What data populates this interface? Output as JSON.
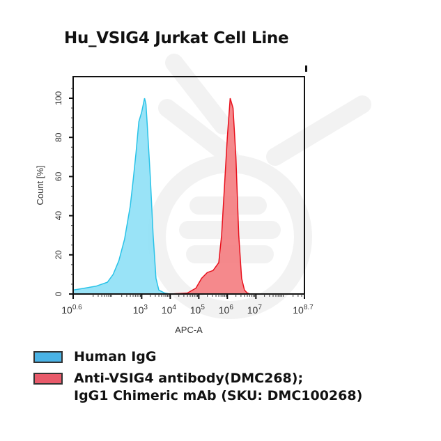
{
  "chart_data": {
    "type": "area",
    "title": "Hu_VSIG4 Jurkat Cell Line",
    "xlabel": "APC-A",
    "ylabel": "Count [%]",
    "xscale": "log10",
    "xlim": [
      0.6,
      8.7
    ],
    "ylim": [
      0,
      110
    ],
    "xtick_labels": [
      "10^0.6",
      "10^3",
      "10^4",
      "10^5",
      "10^6",
      "10^7",
      "10^8.7"
    ],
    "xtick_positions_log10": [
      0.6,
      3,
      4,
      5,
      6,
      7,
      8.7
    ],
    "ytick_labels": [
      "0",
      "20",
      "40",
      "60",
      "80",
      "100"
    ],
    "grid": false,
    "legend_position": "below",
    "series": [
      {
        "name": "Human IgG",
        "color": "#29C3E8",
        "fill": "#8EE0F6",
        "x_log10": [
          0.6,
          1.0,
          1.4,
          1.8,
          2.0,
          2.2,
          2.4,
          2.6,
          2.7,
          2.8,
          2.9,
          3.0,
          3.1,
          3.15,
          3.2,
          3.3,
          3.4,
          3.5,
          3.6,
          3.8,
          4.0
        ],
        "y": [
          2,
          3,
          4,
          6,
          10,
          17,
          28,
          45,
          58,
          72,
          88,
          93,
          100,
          97,
          85,
          60,
          30,
          8,
          2,
          0.5,
          0
        ]
      },
      {
        "name": "Anti-VSIG4 antibody(DMC268); IgG1 Chimeric mAb (SKU: DMC100268)",
        "color": "#E8101C",
        "fill": "#F47C80",
        "x_log10": [
          4.0,
          4.6,
          4.9,
          5.1,
          5.3,
          5.5,
          5.7,
          5.8,
          5.9,
          6.0,
          6.1,
          6.2,
          6.3,
          6.4,
          6.5,
          6.6,
          6.7,
          6.8
        ],
        "y": [
          0,
          0.5,
          3,
          8,
          11,
          12,
          16,
          30,
          55,
          80,
          100,
          95,
          70,
          30,
          8,
          2,
          0.5,
          0
        ]
      }
    ]
  },
  "title": "Hu_VSIG4 Jurkat Cell Line",
  "axes": {
    "ylabel": "Count [%]",
    "xlabel": "APC-A",
    "yticks": [
      "0",
      "20",
      "40",
      "60",
      "80",
      "100"
    ],
    "xticks": [
      {
        "base": "10",
        "exp": "0.6"
      },
      {
        "base": "10",
        "exp": "3"
      },
      {
        "base": "10",
        "exp": "4"
      },
      {
        "base": "10",
        "exp": "5"
      },
      {
        "base": "10",
        "exp": "6"
      },
      {
        "base": "10",
        "exp": "7"
      },
      {
        "base": "10",
        "exp": "8.7"
      }
    ]
  },
  "legend": {
    "items": [
      {
        "label": "Human IgG",
        "color": "#4AB3E6"
      },
      {
        "label": "Anti-VSIG4 antibody(DMC268);",
        "label2": "IgG1 Chimeric mAb (SKU: DMC100268)",
        "color": "#E85A6A"
      }
    ]
  }
}
